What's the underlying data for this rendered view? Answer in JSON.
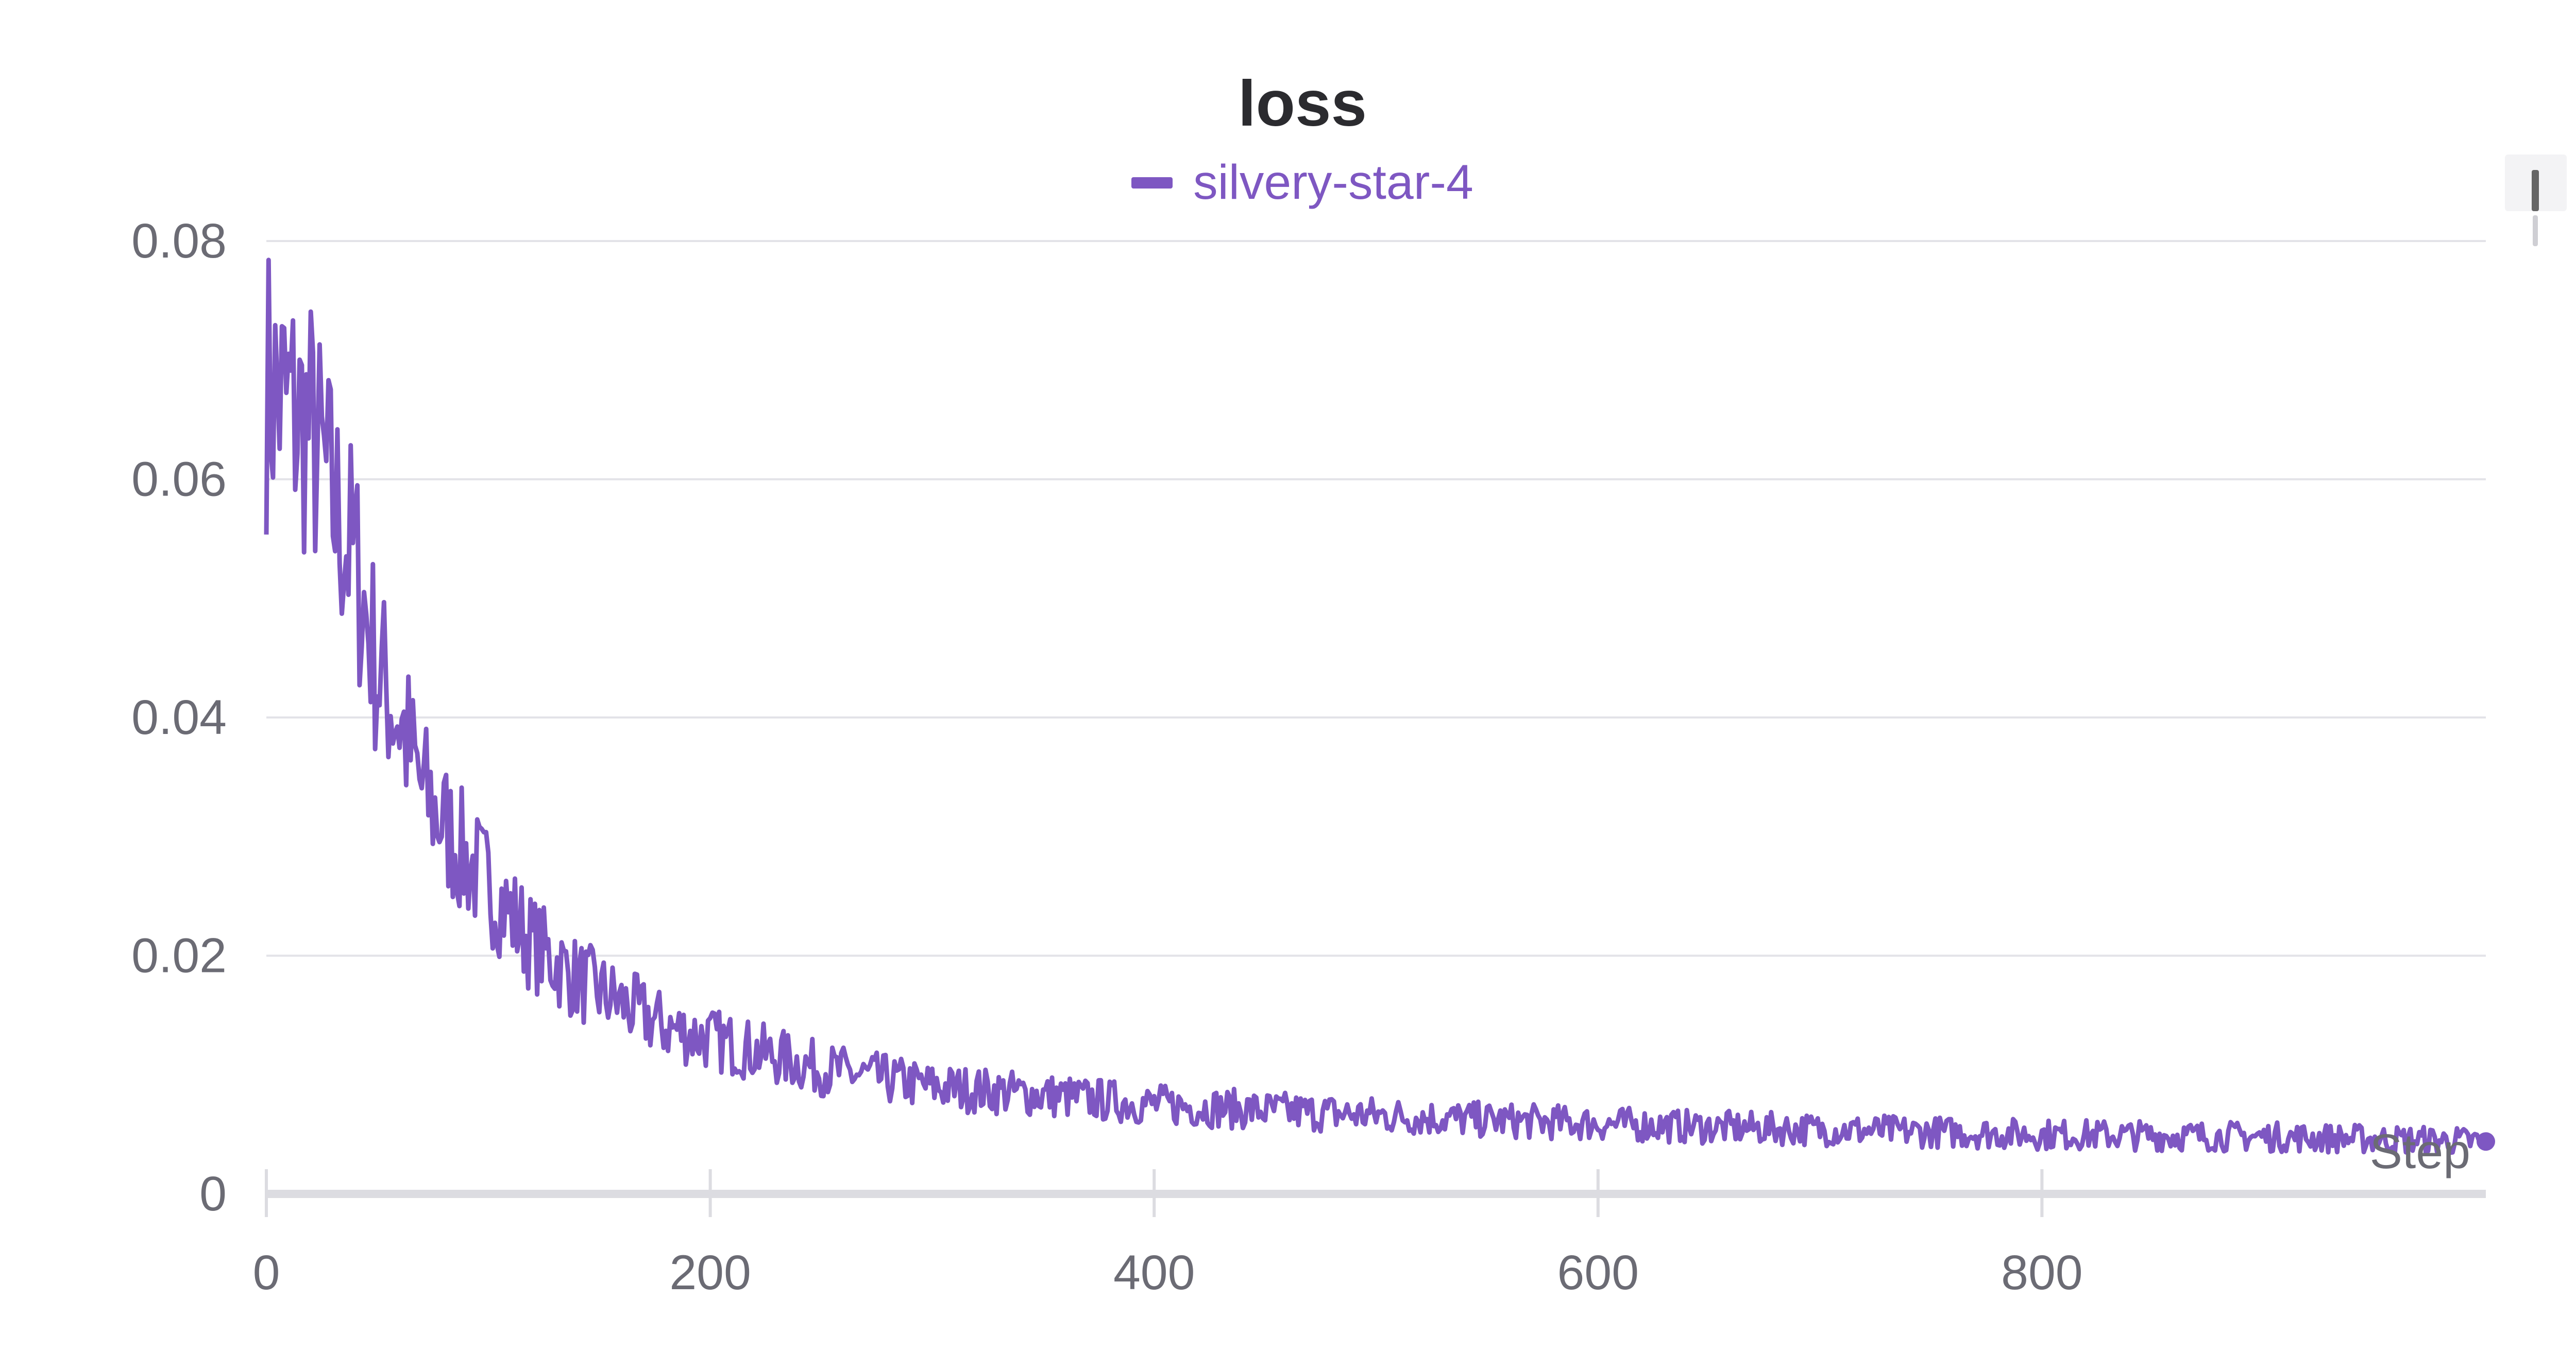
{
  "chart_data": {
    "type": "line",
    "title": "loss",
    "xlabel": "Step",
    "ylabel": "",
    "xlim": [
      0,
      1000
    ],
    "ylim": [
      0,
      0.08
    ],
    "x_ticks": [
      "0",
      "200",
      "400",
      "600",
      "800"
    ],
    "y_ticks": [
      "0",
      "0.02",
      "0.04",
      "0.06",
      "0.08"
    ],
    "grid": true,
    "legend_position": "top-center",
    "series": [
      {
        "name": "silvery-star-4",
        "color": "#7e57c2",
        "x": [
          0,
          10,
          20,
          30,
          40,
          50,
          60,
          70,
          80,
          90,
          100,
          120,
          140,
          160,
          180,
          200,
          250,
          300,
          350,
          400,
          450,
          500,
          550,
          600,
          650,
          700,
          750,
          800,
          850,
          900,
          950,
          1000
        ],
        "y": [
          0.068,
          0.066,
          0.064,
          0.058,
          0.053,
          0.044,
          0.04,
          0.034,
          0.031,
          0.028,
          0.026,
          0.021,
          0.018,
          0.016,
          0.014,
          0.013,
          0.0105,
          0.009,
          0.0083,
          0.0075,
          0.007,
          0.0066,
          0.0062,
          0.0059,
          0.0056,
          0.0054,
          0.0052,
          0.005,
          0.0049,
          0.0048,
          0.0046,
          0.0044
        ]
      }
    ]
  },
  "widget": {
    "icon": "scroll-handle-icon"
  }
}
